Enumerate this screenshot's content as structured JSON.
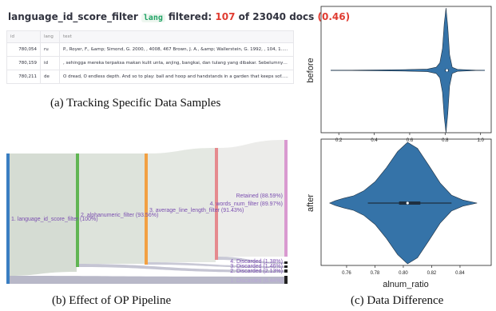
{
  "panel_a": {
    "title_op": "language_id_score_filter",
    "title_tag": "lang",
    "title_filtered_label": "filtered:",
    "title_filtered_count": "107",
    "title_of": "of 23040 docs",
    "title_ratio": "(0.46)",
    "columns": [
      "id",
      "lang",
      "text"
    ],
    "rows": [
      {
        "id": "780,054",
        "lang": "ru",
        "text": "P., Royer, F., &amp; Simond, G. 2000, , 4008, 467 Brown, J. A., &amp; Wallerstein, G. 1992, , 104, 1....."
      },
      {
        "id": "780,159",
        "lang": "id",
        "text": ", sehingga mereka terpaksa makan kulit unta, anjing, bangkai, dan tulang yang dibakar. Sebelumnya, r"
      },
      {
        "id": "780,211",
        "lang": "de",
        "text": "O dread,  O endless depth.  And so to play: ball and hoop and handstands  in a garden that keeps sof....."
      }
    ],
    "caption": "(a)  Tracking Specific Data Samples"
  },
  "panel_b": {
    "caption": "(b)  Effect of OP Pipeline",
    "nodes": [
      {
        "label": "1. language_id_score_filter (100%)",
        "color": "#3a7ec2"
      },
      {
        "label": "2. alphanumeric_filter (93.56%)",
        "color": "#60b553"
      },
      {
        "label": "3. average_line_length_filter (91.43%)",
        "color": "#f2a043"
      },
      {
        "label": "4. words_num_filter (89.97%)",
        "color": "#e58a8e"
      },
      {
        "label": "Retained (88.59%)",
        "color": "#d99ad0"
      }
    ],
    "discarded": [
      "4. Discarded (1.38%)",
      "3. Discarded (1.46%)",
      "2. Discarded (2.13%)",
      "1. Discarded (6.44%)"
    ],
    "label_color": "#7b4fb0"
  },
  "panel_c": {
    "caption": "(c)  Data Difference",
    "chart_data": [
      {
        "type": "violin",
        "ylabel": "before",
        "xlabel": "",
        "xlim": [
          0.1,
          1.06
        ],
        "xticks": [
          "0.2",
          "0.4",
          "0.6",
          "0.8",
          "1.0"
        ],
        "median": 0.81,
        "q1": 0.8,
        "q3": 0.82,
        "color": "#3573a8"
      },
      {
        "type": "violin",
        "ylabel": "after",
        "xlabel": "alnum_ratio",
        "xlim": [
          0.742,
          0.862
        ],
        "xticks": [
          "0.76",
          "0.78",
          "0.80",
          "0.82",
          "0.84"
        ],
        "median": 0.803,
        "q1": 0.797,
        "q3": 0.812,
        "color": "#3573a8"
      }
    ]
  }
}
